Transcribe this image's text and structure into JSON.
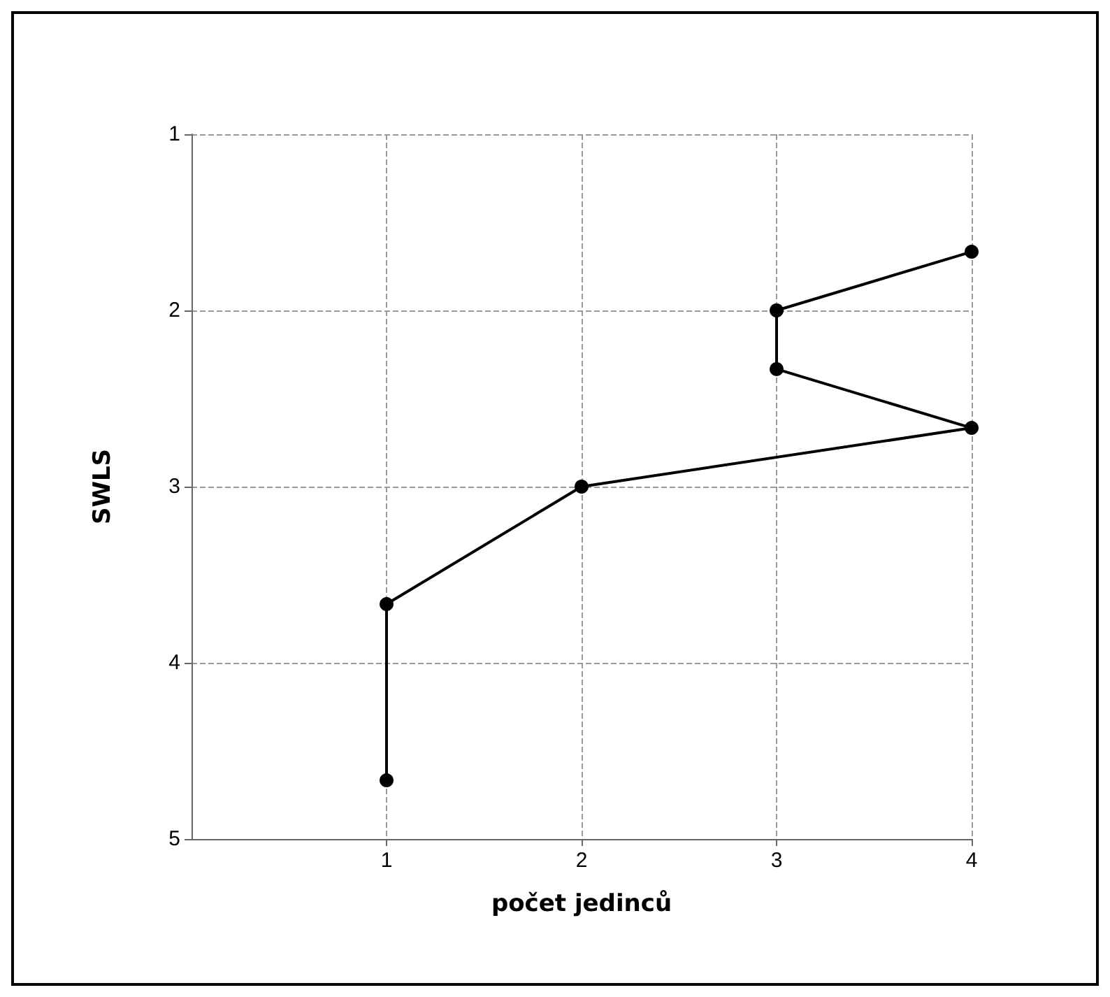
{
  "chart_data": {
    "type": "line",
    "xlabel": "počet jedinců",
    "ylabel": "SWLS",
    "x": [
      1,
      1,
      2,
      4,
      3,
      3,
      4
    ],
    "values": [
      4.667,
      3.667,
      3,
      2.667,
      2.333,
      2,
      1.667
    ],
    "color": "#000000",
    "xlim": [
      0,
      4
    ],
    "xticks": [
      1,
      2,
      3,
      4
    ],
    "ylim": [
      5,
      1
    ],
    "yticks": [
      1,
      2,
      3,
      4,
      5
    ],
    "grid": true,
    "marker": "circle",
    "line_style": "solid"
  }
}
